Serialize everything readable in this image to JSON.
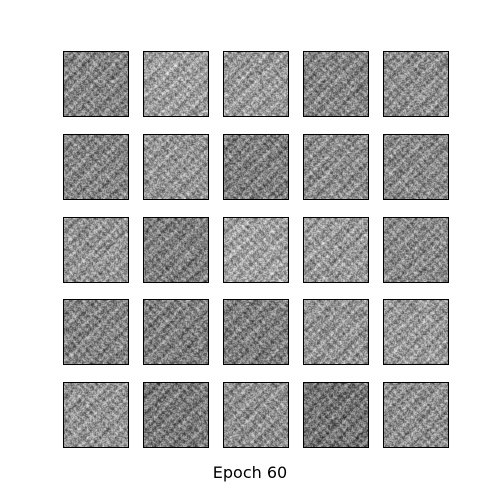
{
  "caption": "Epoch 60",
  "grid": {
    "rows": 5,
    "cols": 5,
    "tiles": [
      {
        "brightness": 0.52
      },
      {
        "brightness": 0.62
      },
      {
        "brightness": 0.6
      },
      {
        "brightness": 0.52
      },
      {
        "brightness": 0.55
      },
      {
        "brightness": 0.52
      },
      {
        "brightness": 0.58
      },
      {
        "brightness": 0.5
      },
      {
        "brightness": 0.55
      },
      {
        "brightness": 0.54
      },
      {
        "brightness": 0.58
      },
      {
        "brightness": 0.5
      },
      {
        "brightness": 0.63
      },
      {
        "brightness": 0.6
      },
      {
        "brightness": 0.54
      },
      {
        "brightness": 0.52
      },
      {
        "brightness": 0.5
      },
      {
        "brightness": 0.5
      },
      {
        "brightness": 0.58
      },
      {
        "brightness": 0.6
      },
      {
        "brightness": 0.58
      },
      {
        "brightness": 0.48
      },
      {
        "brightness": 0.56
      },
      {
        "brightness": 0.46
      },
      {
        "brightness": 0.56
      }
    ]
  },
  "colors": {
    "background": "#ffffff",
    "frame": "#000000"
  }
}
